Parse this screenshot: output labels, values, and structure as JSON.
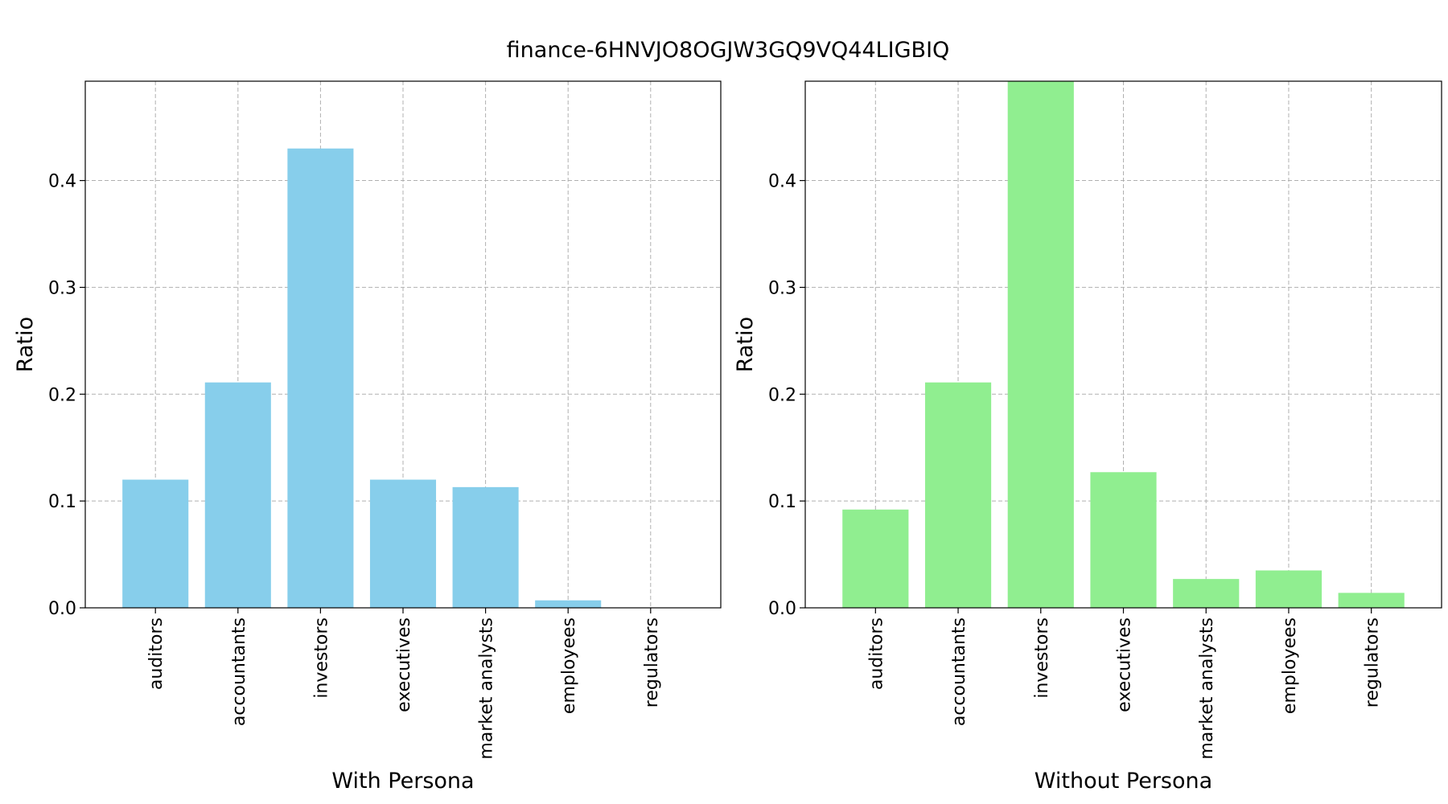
{
  "figure": {
    "title": "finance-6HNVJO8OGJW3GQ9VQ44LIGBIQ"
  },
  "chart_data": [
    {
      "type": "bar",
      "categories": [
        "auditors",
        "accountants",
        "investors",
        "executives",
        "market analysts",
        "employees",
        "regulators"
      ],
      "values": [
        0.12,
        0.211,
        0.43,
        0.12,
        0.113,
        0.007,
        0.0
      ],
      "xlabel": "With Persona",
      "ylabel": "Ratio",
      "ylim": [
        0,
        0.493
      ],
      "yticks": [
        0.0,
        0.1,
        0.2,
        0.3,
        0.4
      ],
      "ytick_labels": [
        "0.0",
        "0.1",
        "0.2",
        "0.3",
        "0.4"
      ],
      "color": "#87CEEB",
      "grid": true
    },
    {
      "type": "bar",
      "categories": [
        "auditors",
        "accountants",
        "investors",
        "executives",
        "market analysts",
        "employees",
        "regulators"
      ],
      "values": [
        0.092,
        0.211,
        0.493,
        0.127,
        0.027,
        0.035,
        0.014
      ],
      "xlabel": "Without Persona",
      "ylabel": "Ratio",
      "ylim": [
        0,
        0.493
      ],
      "yticks": [
        0.0,
        0.1,
        0.2,
        0.3,
        0.4
      ],
      "ytick_labels": [
        "0.0",
        "0.1",
        "0.2",
        "0.3",
        "0.4"
      ],
      "color": "#90EE90",
      "grid": true
    }
  ]
}
